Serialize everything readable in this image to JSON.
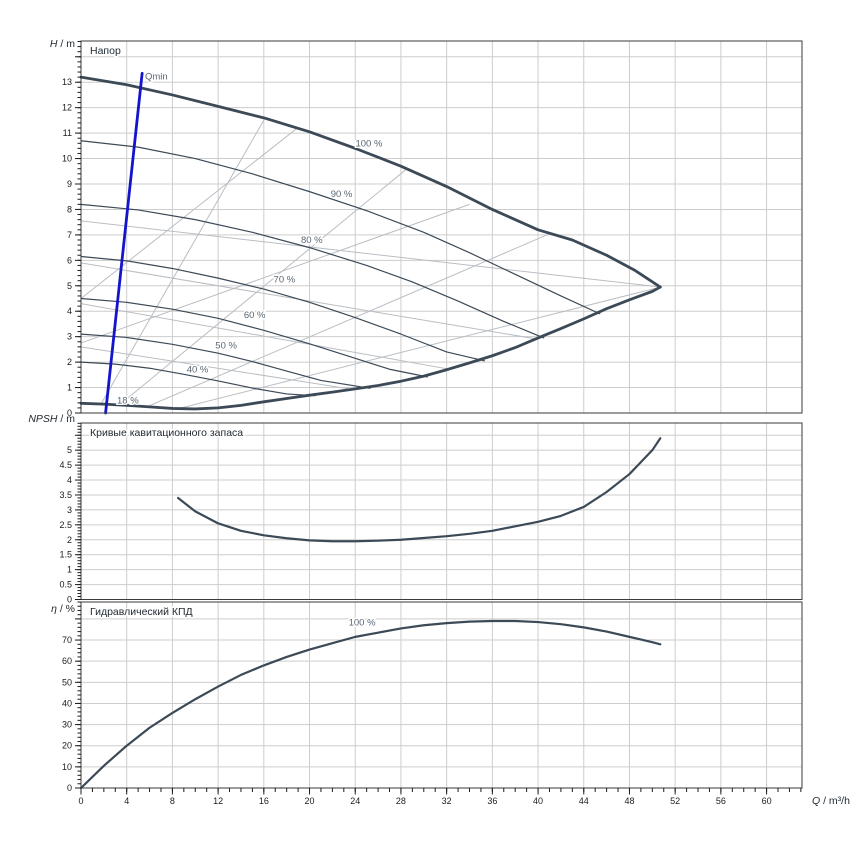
{
  "colors": {
    "curve": "#3c4a57",
    "iso": "#b9bec4",
    "grid": "#cdcdcd",
    "border": "#3a3a3a",
    "qmin_blue": "#1414cc",
    "curve_label": "#5a6774",
    "tick_text": "#1c1c1c",
    "title_text": "#222b33"
  },
  "x_axis": {
    "label_italic": "Q",
    "label_rest": " / m³/h",
    "min": 0,
    "max": 63.1,
    "major": 4,
    "minor": 1,
    "tick_labels": [
      "0",
      "4",
      "8",
      "12",
      "16",
      "20",
      "24",
      "28",
      "32",
      "36",
      "40",
      "44",
      "48",
      "52",
      "56",
      "60"
    ]
  },
  "chart_data": [
    {
      "type": "line",
      "id": "head",
      "title": "Напор",
      "y_axis": {
        "label_italic": "H",
        "label_rest": " / m",
        "min": 0,
        "max": 14.62,
        "major": 1,
        "minor": 0.2,
        "tick_labels": [
          "0",
          "1",
          "2",
          "3",
          "4",
          "5",
          "6",
          "7",
          "8",
          "9",
          "10",
          "11",
          "12",
          "13"
        ]
      },
      "series": [
        {
          "name": "100 %",
          "role": "envelope-top",
          "width": 2.8,
          "points": [
            [
              0,
              13.2
            ],
            [
              4,
              12.9
            ],
            [
              8,
              12.5
            ],
            [
              12,
              12.05
            ],
            [
              16,
              11.6
            ],
            [
              20,
              11.05
            ],
            [
              24,
              10.4
            ],
            [
              28,
              9.7
            ],
            [
              32,
              8.9
            ],
            [
              36,
              8.0
            ],
            [
              40,
              7.2
            ],
            [
              43,
              6.8
            ],
            [
              46,
              6.2
            ],
            [
              48.5,
              5.6
            ],
            [
              50.7,
              4.95
            ]
          ]
        },
        {
          "name": "90 %",
          "width": 1.2,
          "points": [
            [
              0,
              10.7
            ],
            [
              5,
              10.45
            ],
            [
              10,
              10.0
            ],
            [
              15,
              9.4
            ],
            [
              20,
              8.7
            ],
            [
              25,
              7.95
            ],
            [
              30,
              7.1
            ],
            [
              34,
              6.3
            ],
            [
              38,
              5.45
            ],
            [
              42,
              4.6
            ],
            [
              45.4,
              3.9
            ]
          ]
        },
        {
          "name": "80 %",
          "width": 1.2,
          "points": [
            [
              0,
              8.2
            ],
            [
              5,
              7.98
            ],
            [
              10,
              7.6
            ],
            [
              15,
              7.1
            ],
            [
              20,
              6.5
            ],
            [
              25,
              5.8
            ],
            [
              29,
              5.15
            ],
            [
              33,
              4.4
            ],
            [
              37,
              3.6
            ],
            [
              40.5,
              2.95
            ]
          ]
        },
        {
          "name": "70 %",
          "width": 1.2,
          "points": [
            [
              0,
              6.15
            ],
            [
              4,
              5.98
            ],
            [
              8,
              5.68
            ],
            [
              12,
              5.3
            ],
            [
              16,
              4.87
            ],
            [
              20,
              4.35
            ],
            [
              24,
              3.75
            ],
            [
              28,
              3.1
            ],
            [
              32,
              2.4
            ],
            [
              35.3,
              2.05
            ]
          ]
        },
        {
          "name": "60 %",
          "width": 1.2,
          "points": [
            [
              0,
              4.5
            ],
            [
              4,
              4.35
            ],
            [
              8,
              4.08
            ],
            [
              12,
              3.72
            ],
            [
              16,
              3.25
            ],
            [
              20,
              2.72
            ],
            [
              24,
              2.15
            ],
            [
              27,
              1.72
            ],
            [
              30.3,
              1.42
            ]
          ]
        },
        {
          "name": "50 %",
          "width": 1.2,
          "points": [
            [
              0,
              3.1
            ],
            [
              4,
              2.97
            ],
            [
              8,
              2.7
            ],
            [
              12,
              2.35
            ],
            [
              15,
              2.02
            ],
            [
              18,
              1.65
            ],
            [
              21,
              1.28
            ],
            [
              25.3,
              0.97
            ]
          ]
        },
        {
          "name": "40 %",
          "width": 1.2,
          "points": [
            [
              0,
              2.0
            ],
            [
              3,
              1.92
            ],
            [
              6,
              1.76
            ],
            [
              9,
              1.52
            ],
            [
              12,
              1.26
            ],
            [
              15,
              0.98
            ],
            [
              18,
              0.75
            ],
            [
              20.5,
              0.68
            ]
          ]
        },
        {
          "name": "18 %",
          "role": "envelope-bottom",
          "width": 2.8,
          "points": [
            [
              0,
              0.38
            ],
            [
              2,
              0.35
            ],
            [
              4,
              0.3
            ],
            [
              6,
              0.24
            ],
            [
              8,
              0.18
            ],
            [
              10,
              0.16
            ],
            [
              12,
              0.2
            ],
            [
              14,
              0.3
            ],
            [
              16,
              0.44
            ],
            [
              18,
              0.57
            ],
            [
              20,
              0.7
            ],
            [
              22,
              0.82
            ],
            [
              24,
              0.95
            ],
            [
              26,
              1.08
            ],
            [
              28,
              1.25
            ],
            [
              30,
              1.45
            ],
            [
              32,
              1.7
            ],
            [
              34,
              1.97
            ],
            [
              36,
              2.25
            ],
            [
              38,
              2.57
            ],
            [
              40,
              2.95
            ],
            [
              42,
              3.32
            ],
            [
              44,
              3.7
            ],
            [
              46,
              4.1
            ],
            [
              48,
              4.45
            ],
            [
              50,
              4.78
            ],
            [
              50.7,
              4.95
            ]
          ]
        },
        {
          "name": "Qmin",
          "role": "qmin-limit",
          "width": 2.8,
          "color_key": "qmin_blue",
          "points": [
            [
              2.15,
              0
            ],
            [
              5.35,
              13.35
            ]
          ]
        }
      ],
      "iso_lines": [
        [
          [
            1.3,
            0
          ],
          [
            16.5,
            11.9
          ]
        ],
        [
          [
            0,
            4.5
          ],
          [
            19.5,
            11.4
          ]
        ],
        [
          [
            2.5,
            0
          ],
          [
            28.8,
            9.7
          ]
        ],
        [
          [
            0,
            2.75
          ],
          [
            34,
            8.2
          ]
        ],
        [
          [
            4.5,
            0
          ],
          [
            41.3,
            7.1
          ]
        ],
        [
          [
            7,
            0
          ],
          [
            50.7,
            4.95
          ]
        ],
        [
          [
            0,
            7.55
          ],
          [
            50.7,
            4.95
          ]
        ],
        [
          [
            0,
            5.9
          ],
          [
            44,
            2.6
          ]
        ],
        [
          [
            0,
            4.3
          ],
          [
            40,
            1.1
          ]
        ],
        [
          [
            0,
            2.6
          ],
          [
            32,
            0.35
          ]
        ]
      ],
      "labels": [
        {
          "text": "Qmin",
          "q": 5.6,
          "v": 13.22,
          "anchor": "start"
        },
        {
          "text": "100 %",
          "q": 25.2,
          "v": 10.6
        },
        {
          "text": "90 %",
          "q": 22.8,
          "v": 8.6
        },
        {
          "text": "80 %",
          "q": 20.2,
          "v": 6.8
        },
        {
          "text": "70 %",
          "q": 17.8,
          "v": 5.25
        },
        {
          "text": "60 %",
          "q": 15.2,
          "v": 3.85
        },
        {
          "text": "50 %",
          "q": 12.7,
          "v": 2.65
        },
        {
          "text": "40 %",
          "q": 10.2,
          "v": 1.7
        },
        {
          "text": "18 %",
          "q": 4.1,
          "v": 0.5
        }
      ]
    },
    {
      "type": "line",
      "id": "npsh",
      "title": "Кривые кавитационного запаса",
      "y_axis": {
        "label_italic": "NPSH",
        "label_rest": " / m",
        "min": 0,
        "max": 5.91,
        "major": 0.5,
        "minor": 0.1,
        "tick_labels": [
          "0",
          "0.5",
          "1",
          "1.5",
          "2",
          "2.5",
          "3",
          "3.5",
          "4",
          "4.5",
          "5"
        ]
      },
      "series": [
        {
          "name": "NPSH",
          "width": 2.2,
          "points": [
            [
              8.5,
              3.4
            ],
            [
              10,
              2.95
            ],
            [
              12,
              2.55
            ],
            [
              14,
              2.3
            ],
            [
              16,
              2.15
            ],
            [
              18,
              2.05
            ],
            [
              20,
              1.98
            ],
            [
              22,
              1.95
            ],
            [
              24,
              1.95
            ],
            [
              26,
              1.97
            ],
            [
              28,
              2.0
            ],
            [
              30,
              2.06
            ],
            [
              32,
              2.12
            ],
            [
              34,
              2.2
            ],
            [
              36,
              2.3
            ],
            [
              38,
              2.45
            ],
            [
              40,
              2.6
            ],
            [
              42,
              2.8
            ],
            [
              44,
              3.1
            ],
            [
              46,
              3.6
            ],
            [
              48,
              4.2
            ],
            [
              50,
              5.0
            ],
            [
              50.7,
              5.4
            ]
          ]
        }
      ],
      "iso_lines": [],
      "labels": []
    },
    {
      "type": "line",
      "id": "efficiency",
      "title": "Гидравлический КПД",
      "y_axis": {
        "label_italic": "η",
        "label_rest": " / %",
        "min": 0,
        "max": 88,
        "major": 10,
        "minor": 2,
        "tick_labels": [
          "0",
          "10",
          "20",
          "30",
          "40",
          "50",
          "60",
          "70"
        ]
      },
      "series": [
        {
          "name": "100 %",
          "width": 2.2,
          "points": [
            [
              0,
              0
            ],
            [
              2,
              10.5
            ],
            [
              4,
              20
            ],
            [
              6,
              28.5
            ],
            [
              8,
              35.5
            ],
            [
              10,
              42
            ],
            [
              12,
              48
            ],
            [
              14,
              53.5
            ],
            [
              16,
              58
            ],
            [
              18,
              62
            ],
            [
              20,
              65.5
            ],
            [
              22,
              68.5
            ],
            [
              24,
              71.5
            ],
            [
              26,
              73.5
            ],
            [
              28,
              75.5
            ],
            [
              30,
              77
            ],
            [
              32,
              78
            ],
            [
              34,
              78.7
            ],
            [
              36,
              79
            ],
            [
              38,
              79
            ],
            [
              40,
              78.5
            ],
            [
              42,
              77.5
            ],
            [
              44,
              76
            ],
            [
              46,
              74
            ],
            [
              48,
              71.5
            ],
            [
              50,
              69
            ],
            [
              50.7,
              68
            ]
          ]
        }
      ],
      "iso_lines": [],
      "labels": [
        {
          "text": "100 %",
          "q": 24.6,
          "v": 78.2
        }
      ]
    }
  ]
}
